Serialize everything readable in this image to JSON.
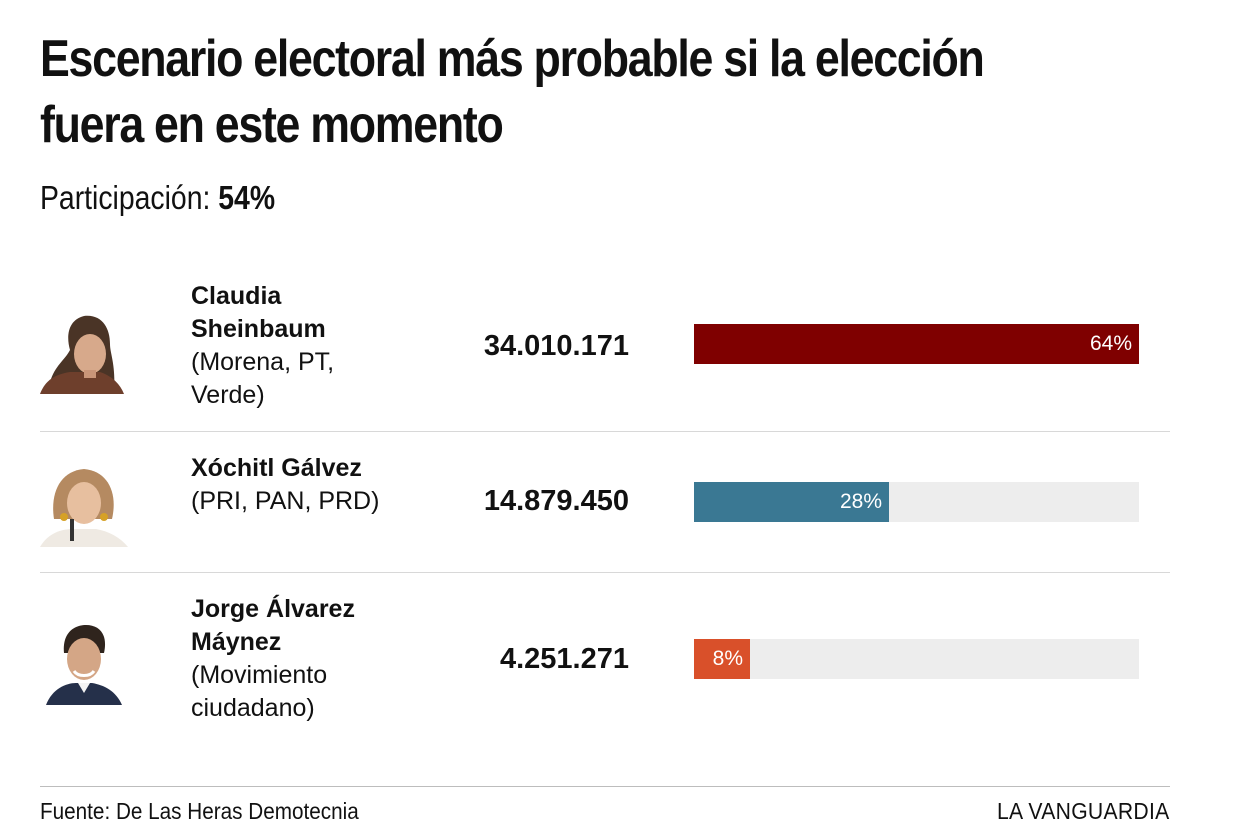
{
  "title": {
    "line1": "Escenario electoral más probable si la elección",
    "line2": "fuera en este momento"
  },
  "participation": {
    "label": "Participación:",
    "value": "54%"
  },
  "chart_data": {
    "type": "bar",
    "orientation": "horizontal",
    "title": "Escenario electoral más probable si la elección fuera en este momento",
    "subtitle": "Participación: 54%",
    "xlim": [
      0,
      64
    ],
    "categories": [
      "Claudia Sheinbaum",
      "Xóchitl Gálvez",
      "Jorge Álvarez Máynez"
    ],
    "values": [
      64,
      28,
      8
    ],
    "rows": [
      {
        "name": "Claudia Sheinbaum",
        "party": "(Morena, PT, Verde)",
        "votes": "34.010.171",
        "percent": 64,
        "percent_label": "64%",
        "color": "#7f0000"
      },
      {
        "name": "Xóchitl Gálvez",
        "party": "(PRI, PAN, PRD)",
        "votes": "14.879.450",
        "percent": 28,
        "percent_label": "28%",
        "color": "#3a7893"
      },
      {
        "name": "Jorge Álvarez Máynez",
        "party": "(Movimiento ciudadano)",
        "votes": "4.251.271",
        "percent": 8,
        "percent_label": "8%",
        "color": "#d9502a"
      }
    ]
  },
  "footer": {
    "source": "Fuente: De Las Heras Demotecnia",
    "brand": "LA VANGUARDIA"
  }
}
